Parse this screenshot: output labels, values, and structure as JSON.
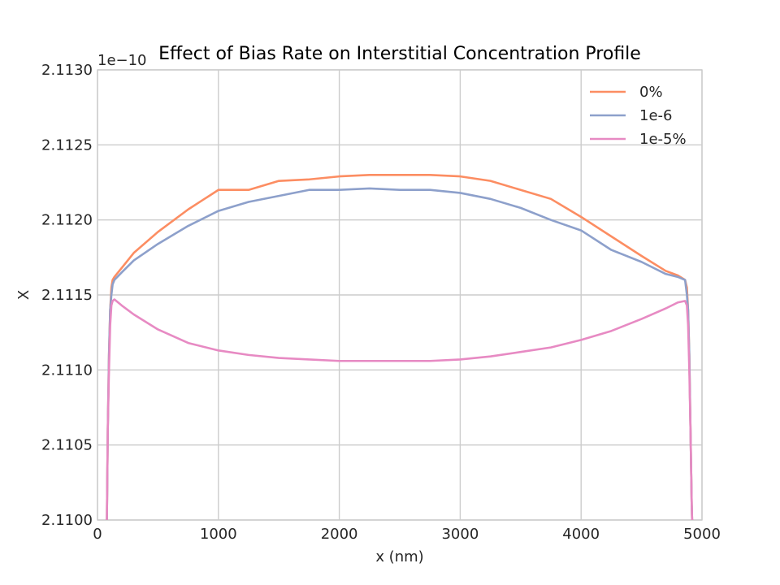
{
  "chart_data": {
    "type": "line",
    "title": "Effect of Bias Rate on Interstitial Concentration Profile",
    "xlabel": "x (nm)",
    "ylabel": "X",
    "offset_text": "1e−10",
    "xlim": [
      0,
      5000
    ],
    "ylim": [
      2.11,
      2.113
    ],
    "xticks": [
      0,
      1000,
      2000,
      3000,
      4000,
      5000
    ],
    "xtick_labels": [
      "0",
      "1000",
      "2000",
      "3000",
      "4000",
      "5000"
    ],
    "yticks": [
      2.11,
      2.1105,
      2.111,
      2.1115,
      2.112,
      2.1125,
      2.113
    ],
    "ytick_labels": [
      "2.1100",
      "2.1105",
      "2.1110",
      "2.1115",
      "2.1120",
      "2.1125",
      "2.1130"
    ],
    "grid": true,
    "legend_position": "top-right",
    "series": [
      {
        "name": "0%",
        "color": "#fc8d62",
        "x": [
          75,
          85,
          95,
          105,
          115,
          125,
          140,
          200,
          300,
          500,
          750,
          1000,
          1250,
          1500,
          1750,
          2000,
          2250,
          2500,
          2750,
          3000,
          3250,
          3500,
          3750,
          4000,
          4250,
          4500,
          4700,
          4800,
          4860,
          4875,
          4885,
          4895,
          4905,
          4915,
          4925
        ],
        "y": [
          2.1098,
          2.1106,
          2.1111,
          2.1114,
          2.11155,
          2.1116,
          2.11162,
          2.11168,
          2.11178,
          2.11192,
          2.11207,
          2.1122,
          2.1122,
          2.11226,
          2.11227,
          2.11229,
          2.1123,
          2.1123,
          2.1123,
          2.11229,
          2.11226,
          2.1122,
          2.11214,
          2.11202,
          2.11189,
          2.11176,
          2.11166,
          2.11163,
          2.1116,
          2.11155,
          2.1114,
          2.1111,
          2.1106,
          2.1101,
          2.1098
        ]
      },
      {
        "name": "1e-6",
        "color": "#8da0cb",
        "x": [
          75,
          85,
          95,
          105,
          115,
          125,
          140,
          200,
          300,
          500,
          750,
          1000,
          1250,
          1500,
          1750,
          2000,
          2250,
          2500,
          2750,
          3000,
          3250,
          3500,
          3750,
          4000,
          4250,
          4500,
          4700,
          4800,
          4860,
          4875,
          4885,
          4895,
          4905,
          4915,
          4925
        ],
        "y": [
          2.1098,
          2.1106,
          2.1111,
          2.1114,
          2.1115,
          2.11157,
          2.1116,
          2.11165,
          2.11173,
          2.11184,
          2.11196,
          2.11206,
          2.11212,
          2.11216,
          2.1122,
          2.1122,
          2.11221,
          2.1122,
          2.1122,
          2.11218,
          2.11214,
          2.11208,
          2.112,
          2.11193,
          2.1118,
          2.11172,
          2.11164,
          2.11162,
          2.1116,
          2.1115,
          2.1114,
          2.1111,
          2.1106,
          2.1101,
          2.1098
        ]
      },
      {
        "name": "1e-5%",
        "color": "#e78ac3",
        "x": [
          75,
          85,
          95,
          105,
          115,
          125,
          140,
          200,
          300,
          500,
          750,
          1000,
          1250,
          1500,
          1750,
          2000,
          2250,
          2500,
          2750,
          3000,
          3250,
          3500,
          3750,
          4000,
          4250,
          4500,
          4700,
          4800,
          4860,
          4875,
          4885,
          4895,
          4905,
          4915,
          4925
        ],
        "y": [
          2.1098,
          2.1106,
          2.111,
          2.1113,
          2.11143,
          2.11146,
          2.11147,
          2.11143,
          2.11137,
          2.11127,
          2.11118,
          2.11113,
          2.1111,
          2.11108,
          2.11107,
          2.11106,
          2.11106,
          2.11106,
          2.11106,
          2.11107,
          2.11109,
          2.11112,
          2.11115,
          2.1112,
          2.11126,
          2.11134,
          2.11141,
          2.11145,
          2.11146,
          2.11143,
          2.1113,
          2.111,
          2.1106,
          2.1101,
          2.1098
        ]
      }
    ]
  }
}
